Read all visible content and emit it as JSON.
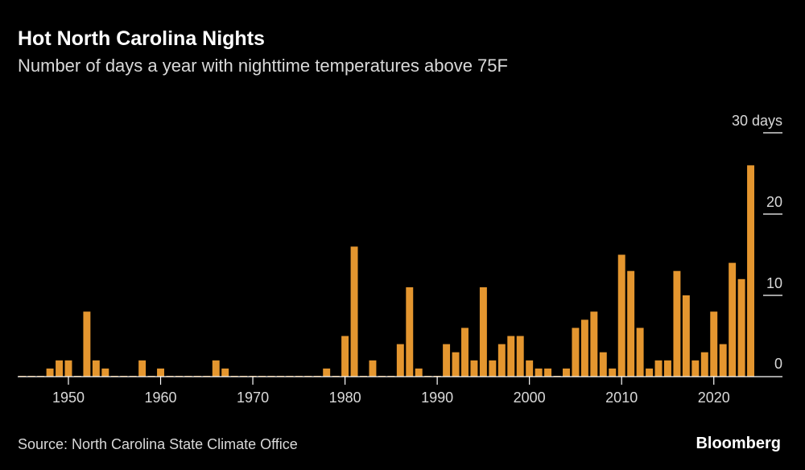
{
  "title": "Hot North Carolina Nights",
  "subtitle": "Number of days a year with nighttime temperatures above 75F",
  "source": "Source: North Carolina State Climate Office",
  "brand": "Bloomberg",
  "colors": {
    "bar": "#e4962f",
    "background": "#000000",
    "axis": "#ffffff",
    "text": "#d9d9d9"
  },
  "chart_data": {
    "type": "bar",
    "title": "Hot North Carolina Nights",
    "subtitle": "Number of days a year with nighttime temperatures above 75F",
    "xlabel": "",
    "ylabel": "days",
    "ylim": [
      0,
      30
    ],
    "yticks": [
      0,
      10,
      20,
      30
    ],
    "ytick_labels": [
      "0",
      "10",
      "20",
      "30 days"
    ],
    "xticks": [
      1950,
      1960,
      1970,
      1980,
      1990,
      2000,
      2010,
      2020
    ],
    "xlim": [
      1944.5,
      2025
    ],
    "categories": [
      1945,
      1946,
      1947,
      1948,
      1949,
      1950,
      1951,
      1952,
      1953,
      1954,
      1955,
      1956,
      1957,
      1958,
      1959,
      1960,
      1961,
      1962,
      1963,
      1964,
      1965,
      1966,
      1967,
      1968,
      1969,
      1970,
      1971,
      1972,
      1973,
      1974,
      1975,
      1976,
      1977,
      1978,
      1979,
      1980,
      1981,
      1982,
      1983,
      1984,
      1985,
      1986,
      1987,
      1988,
      1989,
      1990,
      1991,
      1992,
      1993,
      1994,
      1995,
      1996,
      1997,
      1998,
      1999,
      2000,
      2001,
      2002,
      2003,
      2004,
      2005,
      2006,
      2007,
      2008,
      2009,
      2010,
      2011,
      2012,
      2013,
      2014,
      2015,
      2016,
      2017,
      2018,
      2019,
      2020,
      2021,
      2022,
      2023,
      2024
    ],
    "values": [
      0,
      0,
      0,
      1,
      2,
      2,
      0,
      8,
      2,
      1,
      0,
      0,
      0,
      2,
      0,
      1,
      0,
      0,
      0,
      0,
      0,
      2,
      1,
      0,
      0,
      0,
      0,
      0,
      0,
      0,
      0,
      0,
      0,
      1,
      0,
      5,
      16,
      0,
      2,
      0,
      0,
      4,
      11,
      1,
      0,
      0,
      4,
      3,
      6,
      2,
      11,
      2,
      4,
      5,
      5,
      2,
      1,
      1,
      0,
      1,
      6,
      7,
      8,
      3,
      1,
      15,
      13,
      6,
      1,
      2,
      2,
      13,
      10,
      2,
      3,
      8,
      4,
      14,
      12,
      26
    ]
  }
}
